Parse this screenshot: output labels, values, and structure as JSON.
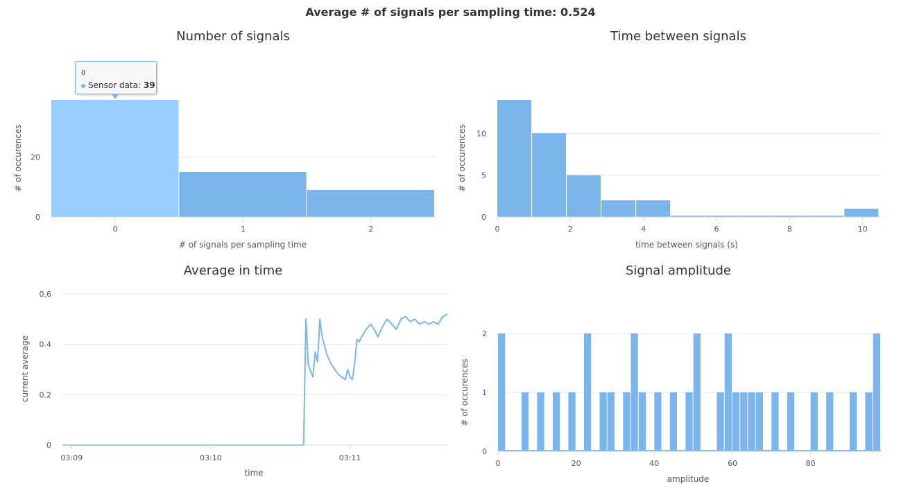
{
  "page": {
    "main_title": "Average # of signals per sampling time: 0.524"
  },
  "colors": {
    "series": "#7cb5ec",
    "hover": "#99ccff"
  },
  "tooltip": {
    "header": "0",
    "series_label": "Sensor data:",
    "value": "39"
  },
  "chart_data": [
    {
      "type": "bar",
      "title": "Number of signals",
      "xlabel": "# of signals per sampling time",
      "ylabel": "# of occurences",
      "categories": [
        "0",
        "1",
        "2"
      ],
      "series": [
        {
          "name": "Sensor data",
          "values": [
            39,
            15,
            9
          ]
        }
      ],
      "ylim": [
        0,
        39
      ],
      "yticks": [
        0,
        20
      ],
      "hovered_index": 0,
      "grid": true
    },
    {
      "type": "bar",
      "title": "Time between signals",
      "xlabel": "time between signals (s)",
      "ylabel": "# of occurences",
      "bins": [
        [
          0,
          0.95,
          14
        ],
        [
          0.95,
          1.9,
          10
        ],
        [
          1.9,
          2.85,
          5
        ],
        [
          2.85,
          3.8,
          2
        ],
        [
          3.8,
          4.75,
          2
        ],
        [
          4.75,
          5.7,
          0
        ],
        [
          5.7,
          6.65,
          0
        ],
        [
          6.65,
          7.6,
          0
        ],
        [
          7.6,
          8.55,
          0
        ],
        [
          8.55,
          9.5,
          0
        ],
        [
          9.5,
          10.45,
          1
        ]
      ],
      "xlim": [
        0,
        10.5
      ],
      "xticks": [
        0,
        2,
        4,
        6,
        8,
        10
      ],
      "ylim": [
        0,
        14
      ],
      "yticks": [
        0,
        5,
        10
      ],
      "grid": true
    },
    {
      "type": "line",
      "title": "Average in time",
      "xlabel": "time",
      "ylabel": "current average",
      "xlim": [
        "03:08:56",
        "03:11:42"
      ],
      "xticks": [
        "03:09",
        "03:10",
        "03:11"
      ],
      "ylim": [
        0,
        0.6
      ],
      "yticks": [
        0,
        0.2,
        0.4,
        0.6
      ],
      "series": [
        {
          "x": [
            "03:08:56",
            "03:10:40",
            "03:10:41",
            "03:10:42",
            "03:10:44",
            "03:10:45",
            "03:10:46",
            "03:10:47",
            "03:10:48",
            "03:10:50",
            "03:10:52",
            "03:10:55",
            "03:10:58",
            "03:10:59",
            "03:11:00",
            "03:11:01",
            "03:11:02",
            "03:11:03",
            "03:11:04",
            "03:11:05",
            "03:11:07",
            "03:11:09",
            "03:11:11",
            "03:11:12",
            "03:11:14",
            "03:11:16",
            "03:11:18",
            "03:11:20",
            "03:11:22",
            "03:11:24",
            "03:11:26",
            "03:11:28",
            "03:11:30",
            "03:11:32",
            "03:11:34",
            "03:11:36",
            "03:11:38",
            "03:11:40",
            "03:11:42"
          ],
          "y": [
            0,
            0,
            0.5,
            0.32,
            0.27,
            0.37,
            0.33,
            0.5,
            0.43,
            0.36,
            0.32,
            0.28,
            0.26,
            0.3,
            0.27,
            0.26,
            0.32,
            0.42,
            0.41,
            0.43,
            0.46,
            0.48,
            0.45,
            0.43,
            0.47,
            0.5,
            0.48,
            0.46,
            0.5,
            0.51,
            0.49,
            0.5,
            0.48,
            0.49,
            0.48,
            0.49,
            0.48,
            0.51,
            0.52
          ]
        }
      ],
      "grid": true
    },
    {
      "type": "bar",
      "title": "Signal amplitude",
      "xlabel": "amplitude",
      "ylabel": "# of occurences",
      "bin_width": 2,
      "bin_starts": [
        0,
        6,
        10,
        14,
        18,
        22,
        26,
        28,
        32,
        34,
        36,
        40,
        44,
        48,
        50,
        56,
        58,
        60,
        62,
        64,
        66,
        70,
        74,
        80,
        84,
        90,
        94,
        96
      ],
      "values": [
        2,
        1,
        1,
        1,
        1,
        2,
        1,
        1,
        1,
        2,
        1,
        1,
        1,
        1,
        2,
        1,
        2,
        1,
        1,
        1,
        1,
        1,
        1,
        1,
        1,
        1,
        1,
        2
      ],
      "xlim": [
        0,
        98
      ],
      "xticks": [
        0,
        20,
        40,
        60,
        80
      ],
      "ylim": [
        0,
        2
      ],
      "yticks": [
        0,
        1,
        2
      ],
      "grid": true
    }
  ]
}
